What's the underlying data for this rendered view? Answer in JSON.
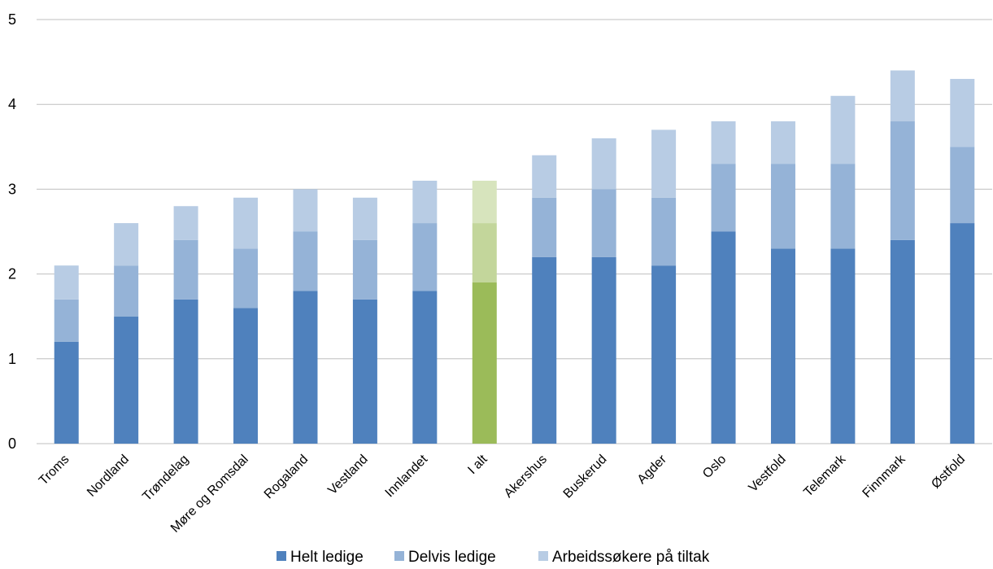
{
  "chart_data": {
    "type": "bar",
    "stacked": true,
    "categories": [
      "Troms",
      "Nordland",
      "Trøndelag",
      "Møre og Romsdal",
      "Rogaland",
      "Vestland",
      "Innlandet",
      "I alt",
      "Akershus",
      "Buskerud",
      "Agder",
      "Oslo",
      "Vestfold",
      "Telemark",
      "Finnmark",
      "Østfold"
    ],
    "series": [
      {
        "name": "Helt ledige",
        "values": [
          1.2,
          1.5,
          1.7,
          1.6,
          1.8,
          1.7,
          1.8,
          1.9,
          2.2,
          2.2,
          2.1,
          2.5,
          2.3,
          2.3,
          2.4,
          2.6
        ],
        "color": "#4f81bd"
      },
      {
        "name": "Delvis ledige",
        "values": [
          0.5,
          0.6,
          0.7,
          0.7,
          0.7,
          0.7,
          0.8,
          0.7,
          0.7,
          0.8,
          0.8,
          0.8,
          1.0,
          1.0,
          1.4,
          0.9
        ],
        "color": "#95b3d7"
      },
      {
        "name": "Arbeidssøkere på tiltak",
        "values": [
          0.4,
          0.5,
          0.4,
          0.6,
          0.5,
          0.5,
          0.5,
          0.5,
          0.5,
          0.6,
          0.8,
          0.5,
          0.5,
          0.8,
          0.6,
          0.8
        ],
        "color": "#b8cce4"
      }
    ],
    "highlight": {
      "category": "I alt",
      "colors": [
        "#9bbb59",
        "#c3d69b",
        "#d7e4bd"
      ]
    },
    "ylim": [
      0,
      5
    ],
    "yticks": [
      0,
      1,
      2,
      3,
      4,
      5
    ],
    "grid": true,
    "gridColor": "#bfbfbf",
    "legend": "bottom",
    "title": "",
    "xlabel": "",
    "ylabel": ""
  }
}
